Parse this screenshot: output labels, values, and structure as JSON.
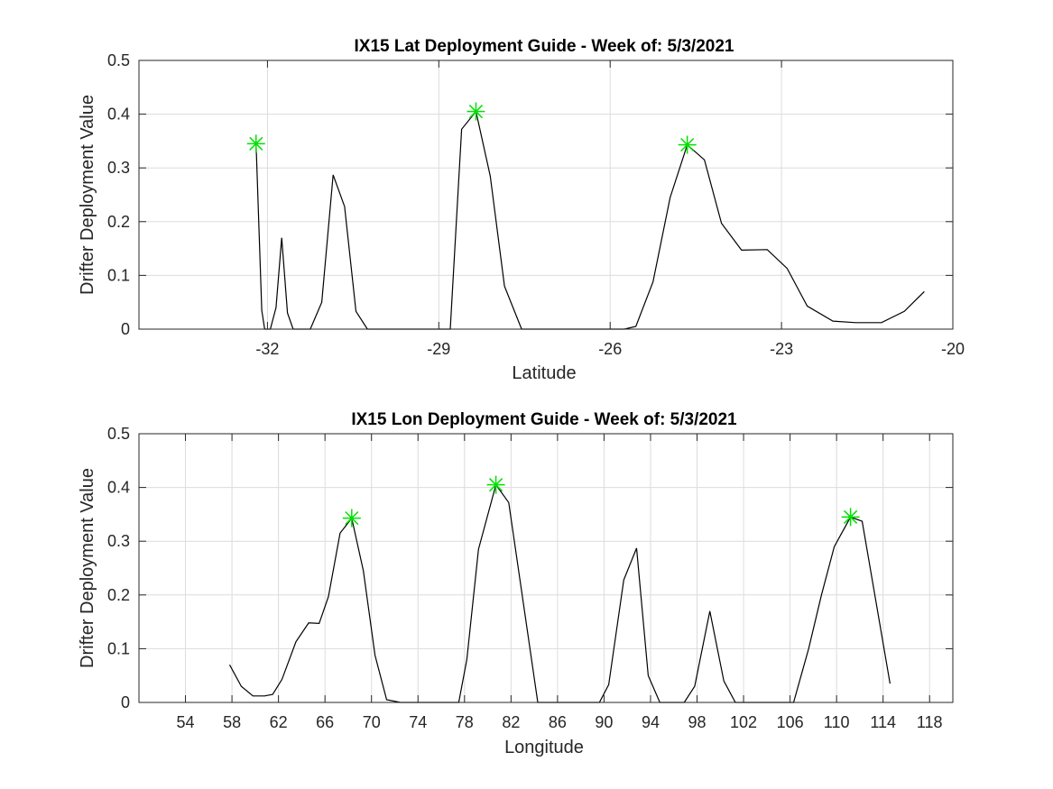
{
  "chart_data": [
    {
      "type": "line",
      "title": "IX15 Lat Deployment Guide - Week of: 5/3/2021",
      "xlabel": "Latitude",
      "ylabel": "Drifter Deployment Value",
      "xlim": [
        -34.25,
        -20
      ],
      "ylim": [
        0,
        0.5
      ],
      "grid": true,
      "xticks": [
        -32,
        -29,
        -26,
        -23,
        -20
      ],
      "yticks": [
        0,
        0.1,
        0.2,
        0.3,
        0.4,
        0.5
      ],
      "series": [
        {
          "x": [
            -32.2,
            -32.1,
            -32.05,
            -31.95,
            -31.85,
            -31.75,
            -31.65,
            -31.55,
            -31.25,
            -31.05,
            -30.85,
            -30.65,
            -30.45,
            -30.25,
            -28.8,
            -28.6,
            -28.35,
            -28.1,
            -27.85,
            -27.55,
            -25.75,
            -25.55,
            -25.25,
            -24.95,
            -24.65,
            -24.35,
            -24.05,
            -23.7,
            -23.25,
            -22.9,
            -22.55,
            -22.1,
            -21.7,
            -21.25,
            -20.85,
            -20.5
          ],
          "y": [
            0.345,
            0.035,
            0,
            0,
            0.04,
            0.17,
            0.03,
            0,
            0,
            0.05,
            0.287,
            0.228,
            0.033,
            0,
            0,
            0.372,
            0.405,
            0.285,
            0.08,
            0,
            0,
            0.005,
            0.088,
            0.245,
            0.343,
            0.315,
            0.197,
            0.147,
            0.148,
            0.113,
            0.043,
            0.015,
            0.012,
            0.012,
            0.033,
            0.07
          ]
        }
      ],
      "markers": [
        {
          "x": -32.2,
          "y": 0.345
        },
        {
          "x": -28.35,
          "y": 0.405
        },
        {
          "x": -24.65,
          "y": 0.343
        }
      ],
      "colors": {
        "line": "#000000",
        "marker": "#00e000"
      }
    },
    {
      "type": "line",
      "title": "IX15 Lon Deployment Guide - Week of: 5/3/2021",
      "xlabel": "Longitude",
      "ylabel": "Drifter Deployment Value",
      "xlim": [
        50,
        120
      ],
      "ylim": [
        0,
        0.5
      ],
      "grid": true,
      "xticks": [
        54,
        58,
        62,
        66,
        70,
        74,
        78,
        82,
        86,
        90,
        94,
        98,
        102,
        106,
        110,
        114,
        118
      ],
      "yticks": [
        0,
        0.1,
        0.2,
        0.3,
        0.4,
        0.5
      ],
      "series": [
        {
          "x": [
            57.8,
            58.8,
            59.8,
            60.8,
            61.5,
            62.3,
            63.5,
            64.6,
            65.5,
            66.3,
            67.3,
            68.3,
            69.3,
            70.3,
            71.3,
            72.5,
            77.5,
            78.2,
            79.2,
            80.7,
            81.8,
            84.3,
            89.6,
            90.4,
            91.7,
            92.8,
            93.8,
            94.8,
            96.9,
            97.8,
            99.1,
            100.3,
            101.3,
            106.3,
            107.6,
            108.7,
            109.8,
            111.2,
            112.2,
            114.6
          ],
          "y": [
            0.07,
            0.03,
            0.012,
            0.012,
            0.015,
            0.043,
            0.113,
            0.148,
            0.147,
            0.197,
            0.315,
            0.343,
            0.245,
            0.088,
            0.005,
            0,
            0,
            0.08,
            0.285,
            0.405,
            0.372,
            0,
            0,
            0.033,
            0.228,
            0.287,
            0.05,
            0,
            0,
            0.03,
            0.17,
            0.04,
            0,
            0,
            0.1,
            0.2,
            0.29,
            0.345,
            0.337,
            0.035
          ]
        }
      ],
      "markers": [
        {
          "x": 68.3,
          "y": 0.343
        },
        {
          "x": 80.7,
          "y": 0.405
        },
        {
          "x": 111.2,
          "y": 0.345
        }
      ],
      "colors": {
        "line": "#000000",
        "marker": "#00e000"
      }
    }
  ]
}
